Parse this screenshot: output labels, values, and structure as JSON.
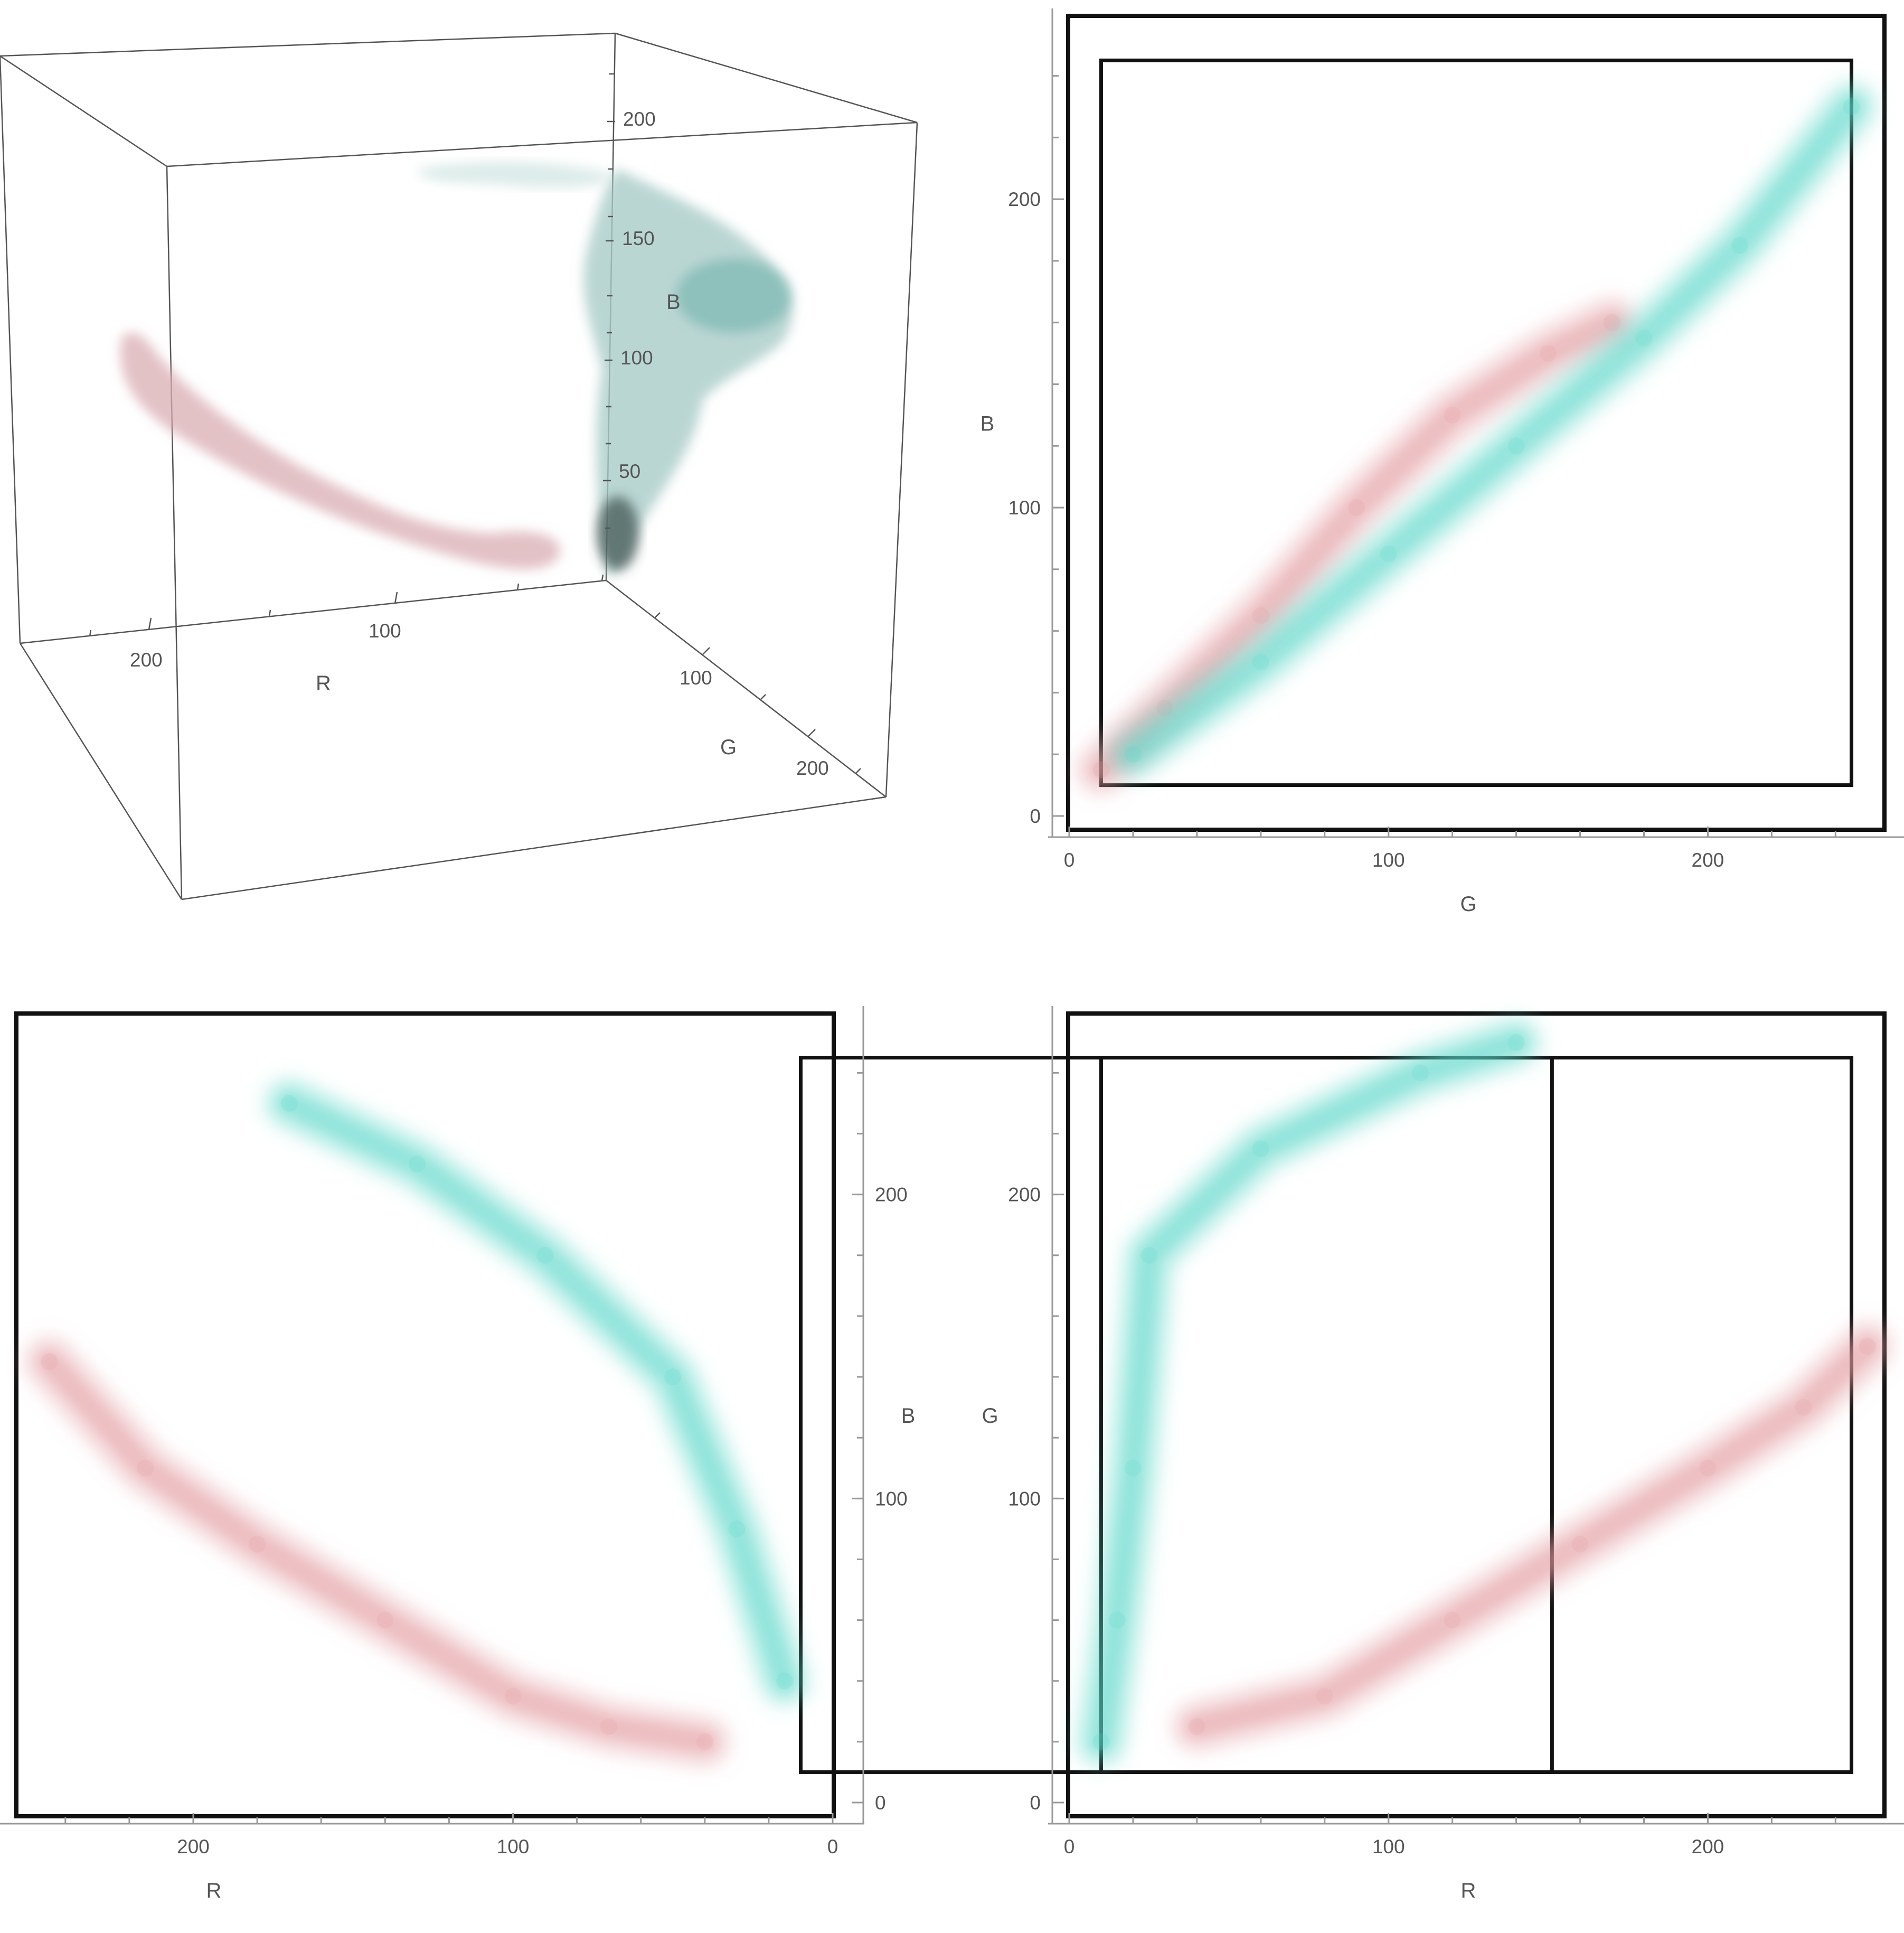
{
  "colors": {
    "pink": "#e39aa0",
    "cyan": "#59d6c8",
    "teal_dark": "#27514c",
    "gray": "#cfc9cc",
    "frame": "#111111",
    "axis": "#999999",
    "text": "#555555"
  },
  "chart_data": [
    {
      "type": "scatter3d",
      "axes": {
        "x": "R",
        "y": "G",
        "z": "B"
      },
      "axis_ranges": {
        "R": [
          0,
          255
        ],
        "G": [
          0,
          255
        ],
        "B": [
          0,
          255
        ]
      },
      "ticks": {
        "R": [
          "100",
          "200"
        ],
        "G": [
          "100",
          "200"
        ],
        "B": [
          "50",
          "100",
          "150",
          "200"
        ]
      },
      "clusters": [
        {
          "color": "pink",
          "description_points": [
            [
              245,
              20,
              150
            ],
            [
              200,
              30,
              120
            ],
            [
              150,
              40,
              90
            ],
            [
              110,
              45,
              60
            ],
            [
              70,
              40,
              40
            ],
            [
              40,
              35,
              20
            ]
          ]
        },
        {
          "color": "cyan",
          "description_points": [
            [
              10,
              10,
              10
            ],
            [
              20,
              60,
              50
            ],
            [
              25,
              120,
              110
            ],
            [
              30,
              160,
              150
            ],
            [
              60,
              210,
              200
            ],
            [
              90,
              240,
              235
            ]
          ]
        }
      ]
    },
    {
      "type": "scatter",
      "x_label": "G",
      "y_label": "B",
      "xlim": [
        0,
        255
      ],
      "ylim": [
        0,
        255
      ],
      "x_ticks": [
        "0",
        "100",
        "200"
      ],
      "y_ticks": [
        "0",
        "100",
        "200"
      ],
      "series": [
        {
          "color": "pink",
          "points": [
            [
              10,
              15
            ],
            [
              30,
              35
            ],
            [
              60,
              65
            ],
            [
              90,
              100
            ],
            [
              120,
              130
            ],
            [
              150,
              150
            ],
            [
              170,
              160
            ]
          ]
        },
        {
          "color": "cyan",
          "points": [
            [
              20,
              20
            ],
            [
              60,
              50
            ],
            [
              100,
              85
            ],
            [
              140,
              120
            ],
            [
              180,
              155
            ],
            [
              210,
              185
            ],
            [
              245,
              230
            ]
          ]
        }
      ]
    },
    {
      "type": "scatter",
      "x_label": "R",
      "y_label": "B",
      "xlim": [
        255,
        0
      ],
      "ylim": [
        0,
        255
      ],
      "x_ticks": [
        "200",
        "100",
        "0"
      ],
      "y_ticks": [
        "0",
        "100",
        "200"
      ],
      "series": [
        {
          "color": "pink",
          "points": [
            [
              245,
              145
            ],
            [
              215,
              110
            ],
            [
              180,
              85
            ],
            [
              140,
              60
            ],
            [
              100,
              35
            ],
            [
              70,
              25
            ],
            [
              40,
              20
            ]
          ]
        },
        {
          "color": "cyan",
          "points": [
            [
              170,
              230
            ],
            [
              130,
              210
            ],
            [
              90,
              180
            ],
            [
              50,
              140
            ],
            [
              30,
              90
            ],
            [
              15,
              40
            ]
          ]
        }
      ]
    },
    {
      "type": "scatter",
      "x_label": "R",
      "y_label": "G",
      "xlim": [
        0,
        255
      ],
      "ylim": [
        0,
        255
      ],
      "x_ticks": [
        "0",
        "100",
        "200"
      ],
      "y_ticks": [
        "0",
        "100",
        "200"
      ],
      "series": [
        {
          "color": "pink",
          "points": [
            [
              40,
              25
            ],
            [
              80,
              35
            ],
            [
              120,
              60
            ],
            [
              160,
              85
            ],
            [
              200,
              110
            ],
            [
              230,
              130
            ],
            [
              250,
              150
            ]
          ]
        },
        {
          "color": "cyan",
          "points": [
            [
              10,
              20
            ],
            [
              15,
              60
            ],
            [
              20,
              110
            ],
            [
              25,
              180
            ],
            [
              60,
              215
            ],
            [
              110,
              240
            ],
            [
              140,
              250
            ]
          ]
        }
      ]
    }
  ]
}
